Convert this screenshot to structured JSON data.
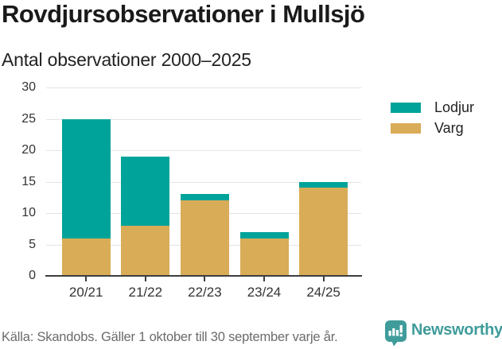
{
  "header": {
    "title": "Rovdjursobservationer i Mullsjö",
    "subtitle": "Antal observationer 2000–2025"
  },
  "chart_data": {
    "type": "bar",
    "stacked": true,
    "title": "Rovdjursobservationer i Mullsjö",
    "subtitle": "Antal observationer 2000–2025",
    "categories": [
      "20/21",
      "21/22",
      "22/23",
      "23/24",
      "24/25"
    ],
    "series": [
      {
        "name": "Varg",
        "color": "#d9ac57",
        "values": [
          6,
          8,
          12,
          6,
          14
        ]
      },
      {
        "name": "Lodjur",
        "color": "#00a39a",
        "values": [
          19,
          11,
          1,
          1,
          1
        ]
      }
    ],
    "totals": [
      25,
      19,
      13,
      7,
      15
    ],
    "y_ticks": [
      0,
      5,
      10,
      15,
      20,
      25,
      30
    ],
    "ylim": [
      0,
      30
    ],
    "xlabel": "",
    "ylabel": "",
    "grid": true,
    "legend_position": "right"
  },
  "legend": {
    "items": [
      {
        "label": "Lodjur",
        "color": "#00a39a"
      },
      {
        "label": "Varg",
        "color": "#d9ac57"
      }
    ]
  },
  "footer": {
    "source": "Källa: Skandobs. Gäller 1 oktober till 30 september varje år.",
    "brand": "Newsworthy"
  },
  "colors": {
    "lodjur_teal": "#00a39a",
    "varg_gold": "#d9ac57",
    "axis": "#3d3d3d",
    "grid": "#e4e4e4",
    "tick_label": "#333333",
    "brand_teal": "#3f9c9b",
    "source_gray": "#6b6b6b"
  }
}
